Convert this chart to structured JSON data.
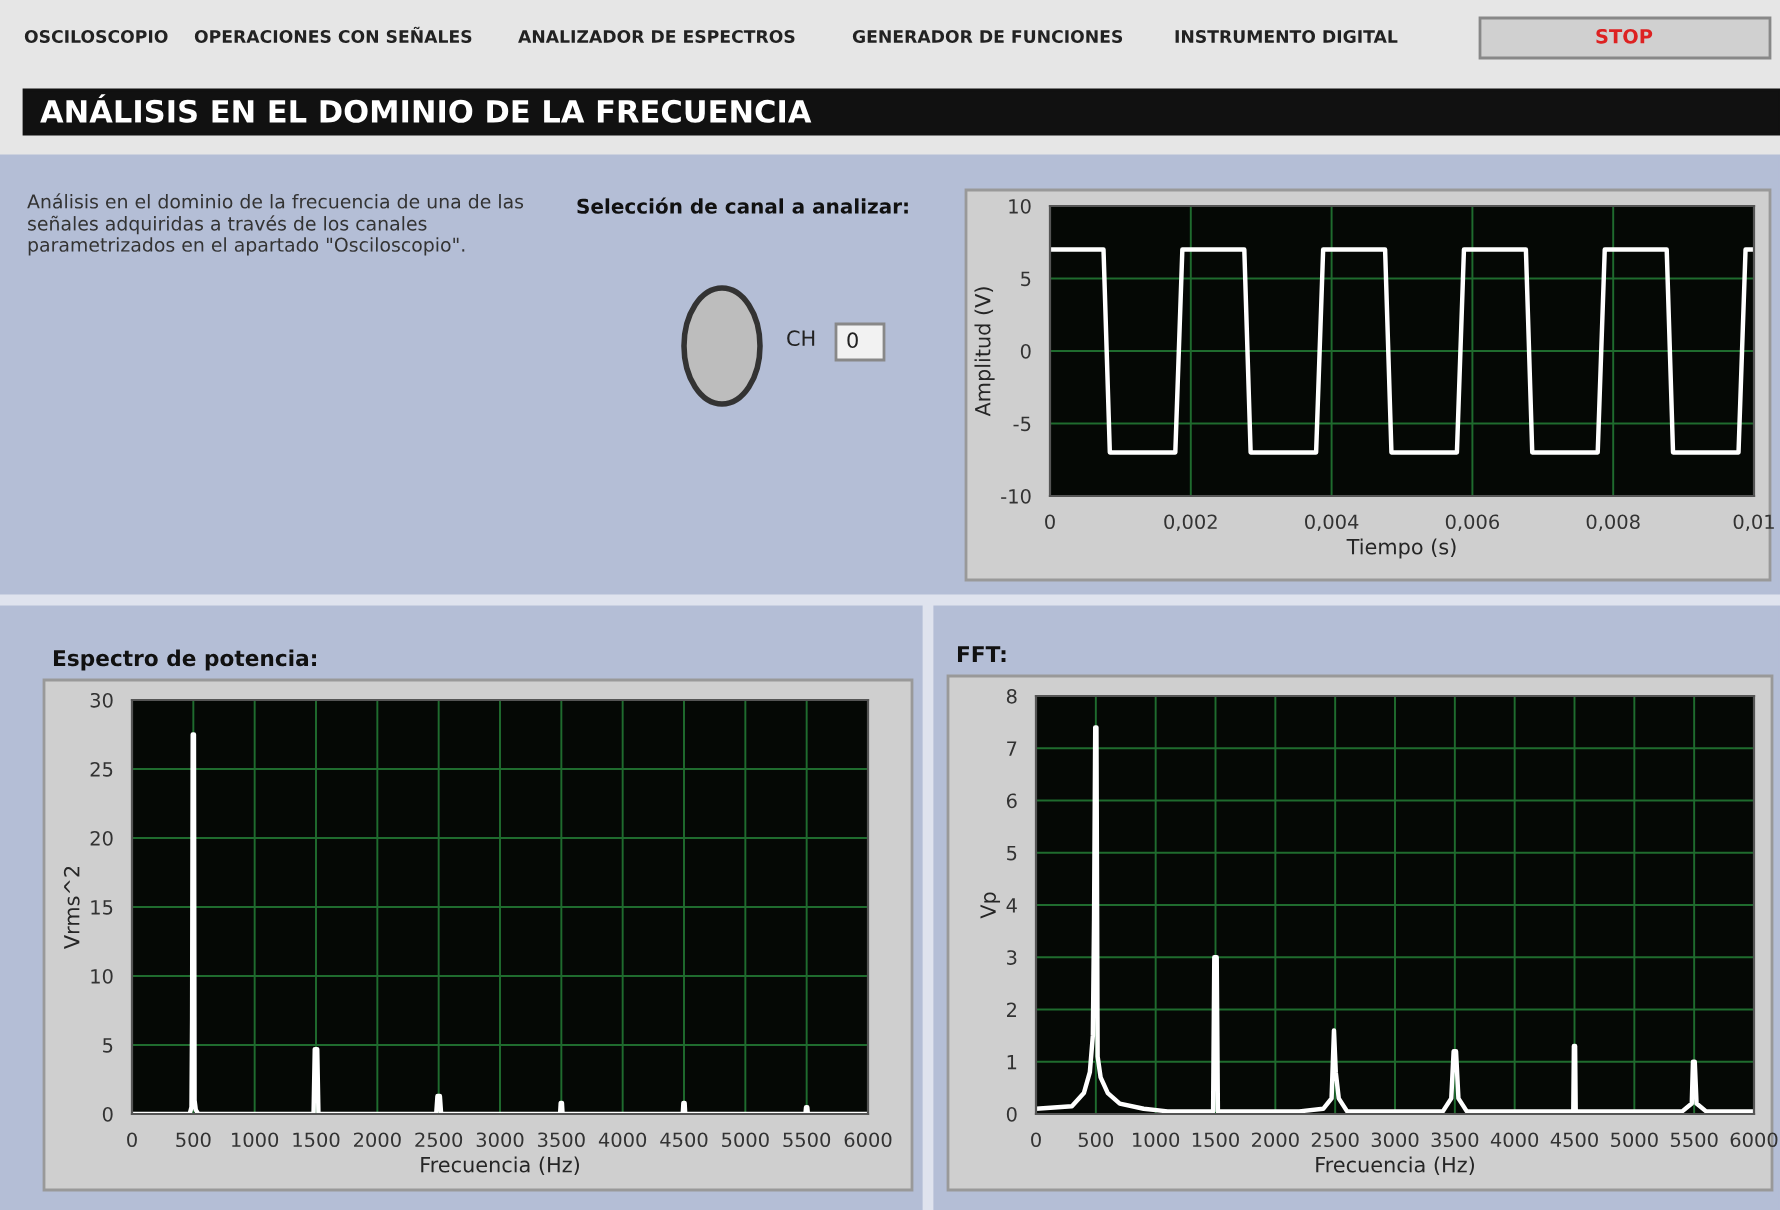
{
  "chart_data": [
    {
      "type": "other",
      "title": "ANÁLISIS EN EL DOMINIO DE LA FRECUENCIA",
      "annotations": [
        "OSCILOSCOPIO",
        "OPERACIONES CON SEÑALES",
        "ANALIZADOR DE ESPECTROS",
        "GENERADOR DE FUNCIONES",
        "INSTRUMENTO DIGITAL",
        "STOP",
        "Análisis en el dominio de la frecuencia de una de las señales adquiridas a través de los canales parametrizados en el apartado \"Osciloscopio\".",
        "Selección de canal a analizar:",
        "CH",
        "0"
      ]
    },
    {
      "type": "line",
      "xlabel": "Tiempo (s)",
      "ylabel": "Amplitud (V)",
      "xlim": [
        0,
        0.01
      ],
      "ylim": [
        -10,
        10
      ],
      "xticks": [
        0,
        {
          "value": 0.002,
          "label": "0,002"
        },
        {
          "value": 0.004,
          "label": "0,004"
        },
        {
          "value": 0.006,
          "label": "0,006"
        },
        {
          "value": 0.008,
          "label": "0,008"
        },
        {
          "value": 0.01,
          "label": "0,01"
        }
      ],
      "yticks": [
        -10,
        -5,
        0,
        5,
        10
      ],
      "grid": true,
      "series": [
        {
          "color": "#ffffff",
          "x": [
            0,
            0.00076,
            0.00085,
            0.00178,
            0.00188,
            0.00276,
            0.00285,
            0.00378,
            0.00388,
            0.00476,
            0.00485,
            0.00578,
            0.00588,
            0.00676,
            0.00685,
            0.00778,
            0.00788,
            0.00876,
            0.00885,
            0.00978,
            0.00988,
            0.01
          ],
          "values": [
            7,
            7,
            -7,
            -7,
            7,
            7,
            -7,
            -7,
            7,
            7,
            -7,
            -7,
            7,
            7,
            -7,
            -7,
            7,
            7,
            -7,
            -7,
            7,
            7
          ]
        }
      ]
    },
    {
      "type": "line",
      "title": "Espectro de potencia:",
      "xlabel": "Frecuencia (Hz)",
      "ylabel": "Vrms^2",
      "xlim": [
        0,
        6000
      ],
      "ylim": [
        0,
        30
      ],
      "xticks": [
        0,
        500,
        1000,
        1500,
        2000,
        2500,
        3000,
        3500,
        4000,
        4500,
        5000,
        5500,
        6000
      ],
      "yticks": [
        0,
        5,
        10,
        15,
        20,
        25,
        30
      ],
      "grid": true,
      "series": [
        {
          "color": "#ffffff",
          "x": [
            0,
            470,
            485,
            490,
            495,
            505,
            510,
            520,
            540,
            1480,
            1490,
            1510,
            1520,
            2480,
            2490,
            2510,
            2520,
            3490,
            3495,
            3505,
            3510,
            4490,
            4495,
            4505,
            4510,
            5490,
            5495,
            5505,
            5510,
            6000
          ],
          "values": [
            0,
            0,
            0.5,
            7,
            27.5,
            27.5,
            1,
            0.3,
            0,
            0,
            4.7,
            4.7,
            0,
            0,
            1.3,
            1.3,
            0,
            0,
            0.8,
            0.8,
            0,
            0,
            0.8,
            0.8,
            0,
            0,
            0.5,
            0.5,
            0,
            0
          ]
        }
      ]
    },
    {
      "type": "line",
      "title": "FFT:",
      "xlabel": "Frecuencia (Hz)",
      "ylabel": "Vp",
      "xlim": [
        0,
        6000
      ],
      "ylim": [
        0,
        8
      ],
      "xticks": [
        0,
        500,
        1000,
        1500,
        2000,
        2500,
        3000,
        3500,
        4000,
        4500,
        5000,
        5500,
        6000
      ],
      "yticks": [
        0,
        1,
        2,
        3,
        4,
        5,
        6,
        7,
        8
      ],
      "grid": true,
      "series": [
        {
          "color": "#ffffff",
          "x": [
            0,
            300,
            400,
            450,
            475,
            485,
            495,
            505,
            515,
            540,
            600,
            700,
            900,
            1100,
            1480,
            1490,
            1510,
            1520,
            2200,
            2400,
            2470,
            2490,
            2505,
            2530,
            2600,
            3400,
            3470,
            3490,
            3510,
            3530,
            3600,
            4490,
            4495,
            4505,
            4510,
            5400,
            5480,
            5490,
            5505,
            5520,
            5600,
            6000
          ],
          "values": [
            0.1,
            0.15,
            0.4,
            0.8,
            1.5,
            3.7,
            7.4,
            7.4,
            1.1,
            0.7,
            0.4,
            0.2,
            0.1,
            0.05,
            0.05,
            3.0,
            3.0,
            0.05,
            0.05,
            0.1,
            0.3,
            1.6,
            0.8,
            0.3,
            0.05,
            0.05,
            0.3,
            1.2,
            1.2,
            0.3,
            0.05,
            0.05,
            1.3,
            1.3,
            0.05,
            0.05,
            0.2,
            1.0,
            1.0,
            0.2,
            0.05,
            0.05
          ]
        }
      ]
    }
  ]
}
